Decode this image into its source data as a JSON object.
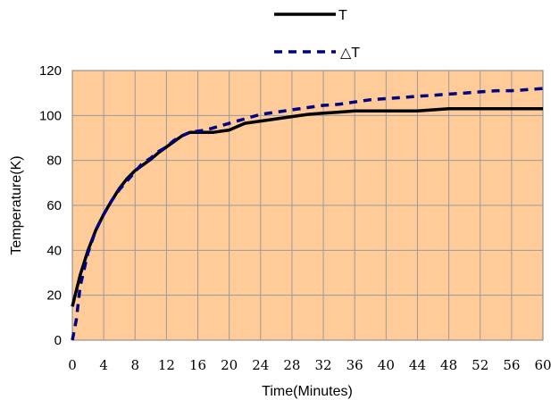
{
  "chart_data": {
    "type": "line",
    "xlabel": "Time(Minutes)",
    "ylabel": "Temperature(K)",
    "xlim": [
      0,
      60
    ],
    "ylim": [
      0,
      120
    ],
    "xticks": [
      0,
      4,
      8,
      12,
      16,
      20,
      24,
      28,
      32,
      36,
      40,
      44,
      48,
      52,
      56,
      60
    ],
    "yticks": [
      0,
      20,
      40,
      60,
      80,
      100,
      120
    ],
    "grid": true,
    "plot_background": "#FFCC99",
    "legend_position": "top-center",
    "series": [
      {
        "name": "T",
        "color": "#000000",
        "style": "solid",
        "x": [
          0,
          1,
          2,
          3,
          4,
          5,
          6,
          7,
          8,
          9,
          10,
          11,
          12,
          13,
          14,
          15,
          16,
          17,
          18,
          19,
          20,
          21,
          22,
          23,
          24,
          26,
          28,
          30,
          32,
          34,
          36,
          38,
          40,
          42,
          44,
          46,
          48,
          50,
          52,
          54,
          56,
          58,
          60
        ],
        "y": [
          15,
          29,
          40,
          49,
          56,
          62,
          67.5,
          72,
          75.5,
          78,
          80.5,
          83.5,
          86,
          88.5,
          91,
          92.5,
          92.5,
          92.5,
          92.5,
          93,
          93.5,
          95,
          96.5,
          97,
          97.5,
          98.5,
          99.5,
          100.5,
          101,
          101.5,
          102,
          102,
          102,
          102,
          102,
          102.5,
          103,
          103,
          103,
          103,
          103,
          103,
          103
        ]
      },
      {
        "name": "△T",
        "color": "#000080",
        "style": "dashed",
        "x": [
          0,
          0.5,
          1,
          2,
          3,
          4,
          5,
          6,
          7,
          8,
          9,
          10,
          11,
          12,
          13,
          14,
          15,
          16,
          17,
          18,
          19,
          20,
          22,
          24,
          26,
          28,
          30,
          32,
          34,
          36,
          38,
          40,
          42,
          44,
          46,
          48,
          50,
          52,
          54,
          56,
          58,
          60
        ],
        "y": [
          0,
          9,
          24,
          39,
          49,
          56,
          62,
          67,
          71,
          75,
          79,
          81,
          84,
          86,
          89,
          91,
          92.5,
          93,
          93.5,
          94.5,
          95.5,
          96.5,
          98.5,
          100.5,
          101.5,
          102.5,
          103.5,
          104.5,
          105,
          106,
          107,
          107.5,
          108,
          108.5,
          109,
          109.5,
          110,
          110.5,
          111,
          111,
          111.5,
          112
        ]
      }
    ]
  }
}
